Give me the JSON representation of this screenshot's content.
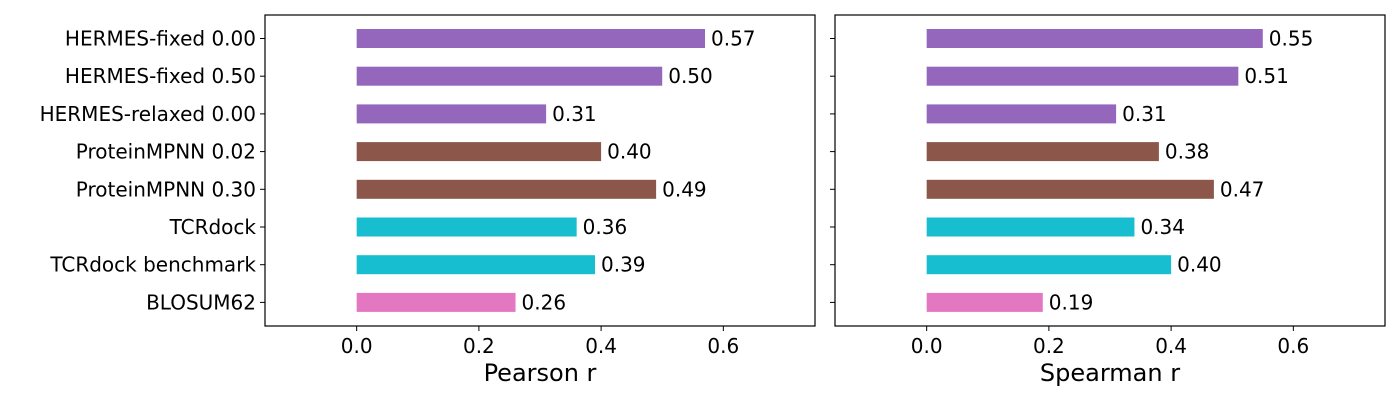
{
  "chart_data": [
    {
      "type": "bar",
      "orientation": "horizontal",
      "categories": [
        "HERMES-fixed 0.00",
        "HERMES-fixed 0.50",
        "HERMES-relaxed 0.00",
        "ProteinMPNN 0.02",
        "ProteinMPNN 0.30",
        "TCRdock",
        "TCRdock benchmark",
        "BLOSUM62"
      ],
      "values": [
        0.57,
        0.5,
        0.31,
        0.4,
        0.49,
        0.36,
        0.39,
        0.26
      ],
      "value_labels": [
        "0.57",
        "0.50",
        "0.31",
        "0.40",
        "0.49",
        "0.36",
        "0.39",
        "0.26"
      ],
      "bar_colors": [
        "#9467bd",
        "#9467bd",
        "#9467bd",
        "#8c564b",
        "#8c564b",
        "#17becf",
        "#17becf",
        "#e377c2"
      ],
      "xlabel": "Pearson r",
      "ylabel": "",
      "xlim": [
        -0.15,
        0.75
      ],
      "xticks": [
        0.0,
        0.2,
        0.4,
        0.6
      ],
      "xtick_labels": [
        "0.0",
        "0.2",
        "0.4",
        "0.6"
      ],
      "grid": false
    },
    {
      "type": "bar",
      "orientation": "horizontal",
      "categories": [
        "HERMES-fixed 0.00",
        "HERMES-fixed 0.50",
        "HERMES-relaxed 0.00",
        "ProteinMPNN 0.02",
        "ProteinMPNN 0.30",
        "TCRdock",
        "TCRdock benchmark",
        "BLOSUM62"
      ],
      "values": [
        0.55,
        0.51,
        0.31,
        0.38,
        0.47,
        0.34,
        0.4,
        0.19
      ],
      "value_labels": [
        "0.55",
        "0.51",
        "0.31",
        "0.38",
        "0.47",
        "0.34",
        "0.40",
        "0.19"
      ],
      "bar_colors": [
        "#9467bd",
        "#9467bd",
        "#9467bd",
        "#8c564b",
        "#8c564b",
        "#17becf",
        "#17becf",
        "#e377c2"
      ],
      "xlabel": "Spearman r",
      "ylabel": "",
      "xlim": [
        -0.15,
        0.75
      ],
      "xticks": [
        0.0,
        0.2,
        0.4,
        0.6
      ],
      "xtick_labels": [
        "0.0",
        "0.2",
        "0.4",
        "0.6"
      ],
      "grid": false
    }
  ]
}
